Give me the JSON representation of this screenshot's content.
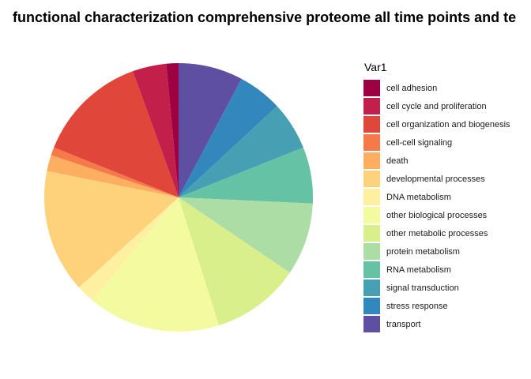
{
  "chart_data": {
    "type": "pie",
    "title": "functional characterization comprehensive proteome all time points and te",
    "legend_title": "Var1",
    "legend_position": "right",
    "start_angle_deg": 0,
    "direction": "clockwise",
    "slices": [
      {
        "label": "transport",
        "value": 8.0,
        "color": "#5E4FA2"
      },
      {
        "label": "stress response",
        "value": 5.5,
        "color": "#3288BD"
      },
      {
        "label": "signal transduction",
        "value": 6.0,
        "color": "#479FB3"
      },
      {
        "label": "RNA metabolism",
        "value": 7.0,
        "color": "#66C2A5"
      },
      {
        "label": "protein metabolism",
        "value": 9.0,
        "color": "#ABDDA4"
      },
      {
        "label": "other metabolic processes",
        "value": 11.0,
        "color": "#D9EF8B"
      },
      {
        "label": "other biological processes",
        "value": 16.5,
        "color": "#F4FAA0"
      },
      {
        "label": "DNA metabolism",
        "value": 2.2,
        "color": "#FEF0A0"
      },
      {
        "label": "developmental processes",
        "value": 15.3,
        "color": "#FED27A"
      },
      {
        "label": "death",
        "value": 2.0,
        "color": "#FDAE61"
      },
      {
        "label": "cell-cell signaling",
        "value": 1.0,
        "color": "#F67A49"
      },
      {
        "label": "cell organization and biogenesis",
        "value": 13.8,
        "color": "#E0473A"
      },
      {
        "label": "cell cycle and proliferation",
        "value": 4.2,
        "color": "#C2204B"
      },
      {
        "label": "cell adhesion",
        "value": 1.5,
        "color": "#9E0142"
      }
    ]
  }
}
